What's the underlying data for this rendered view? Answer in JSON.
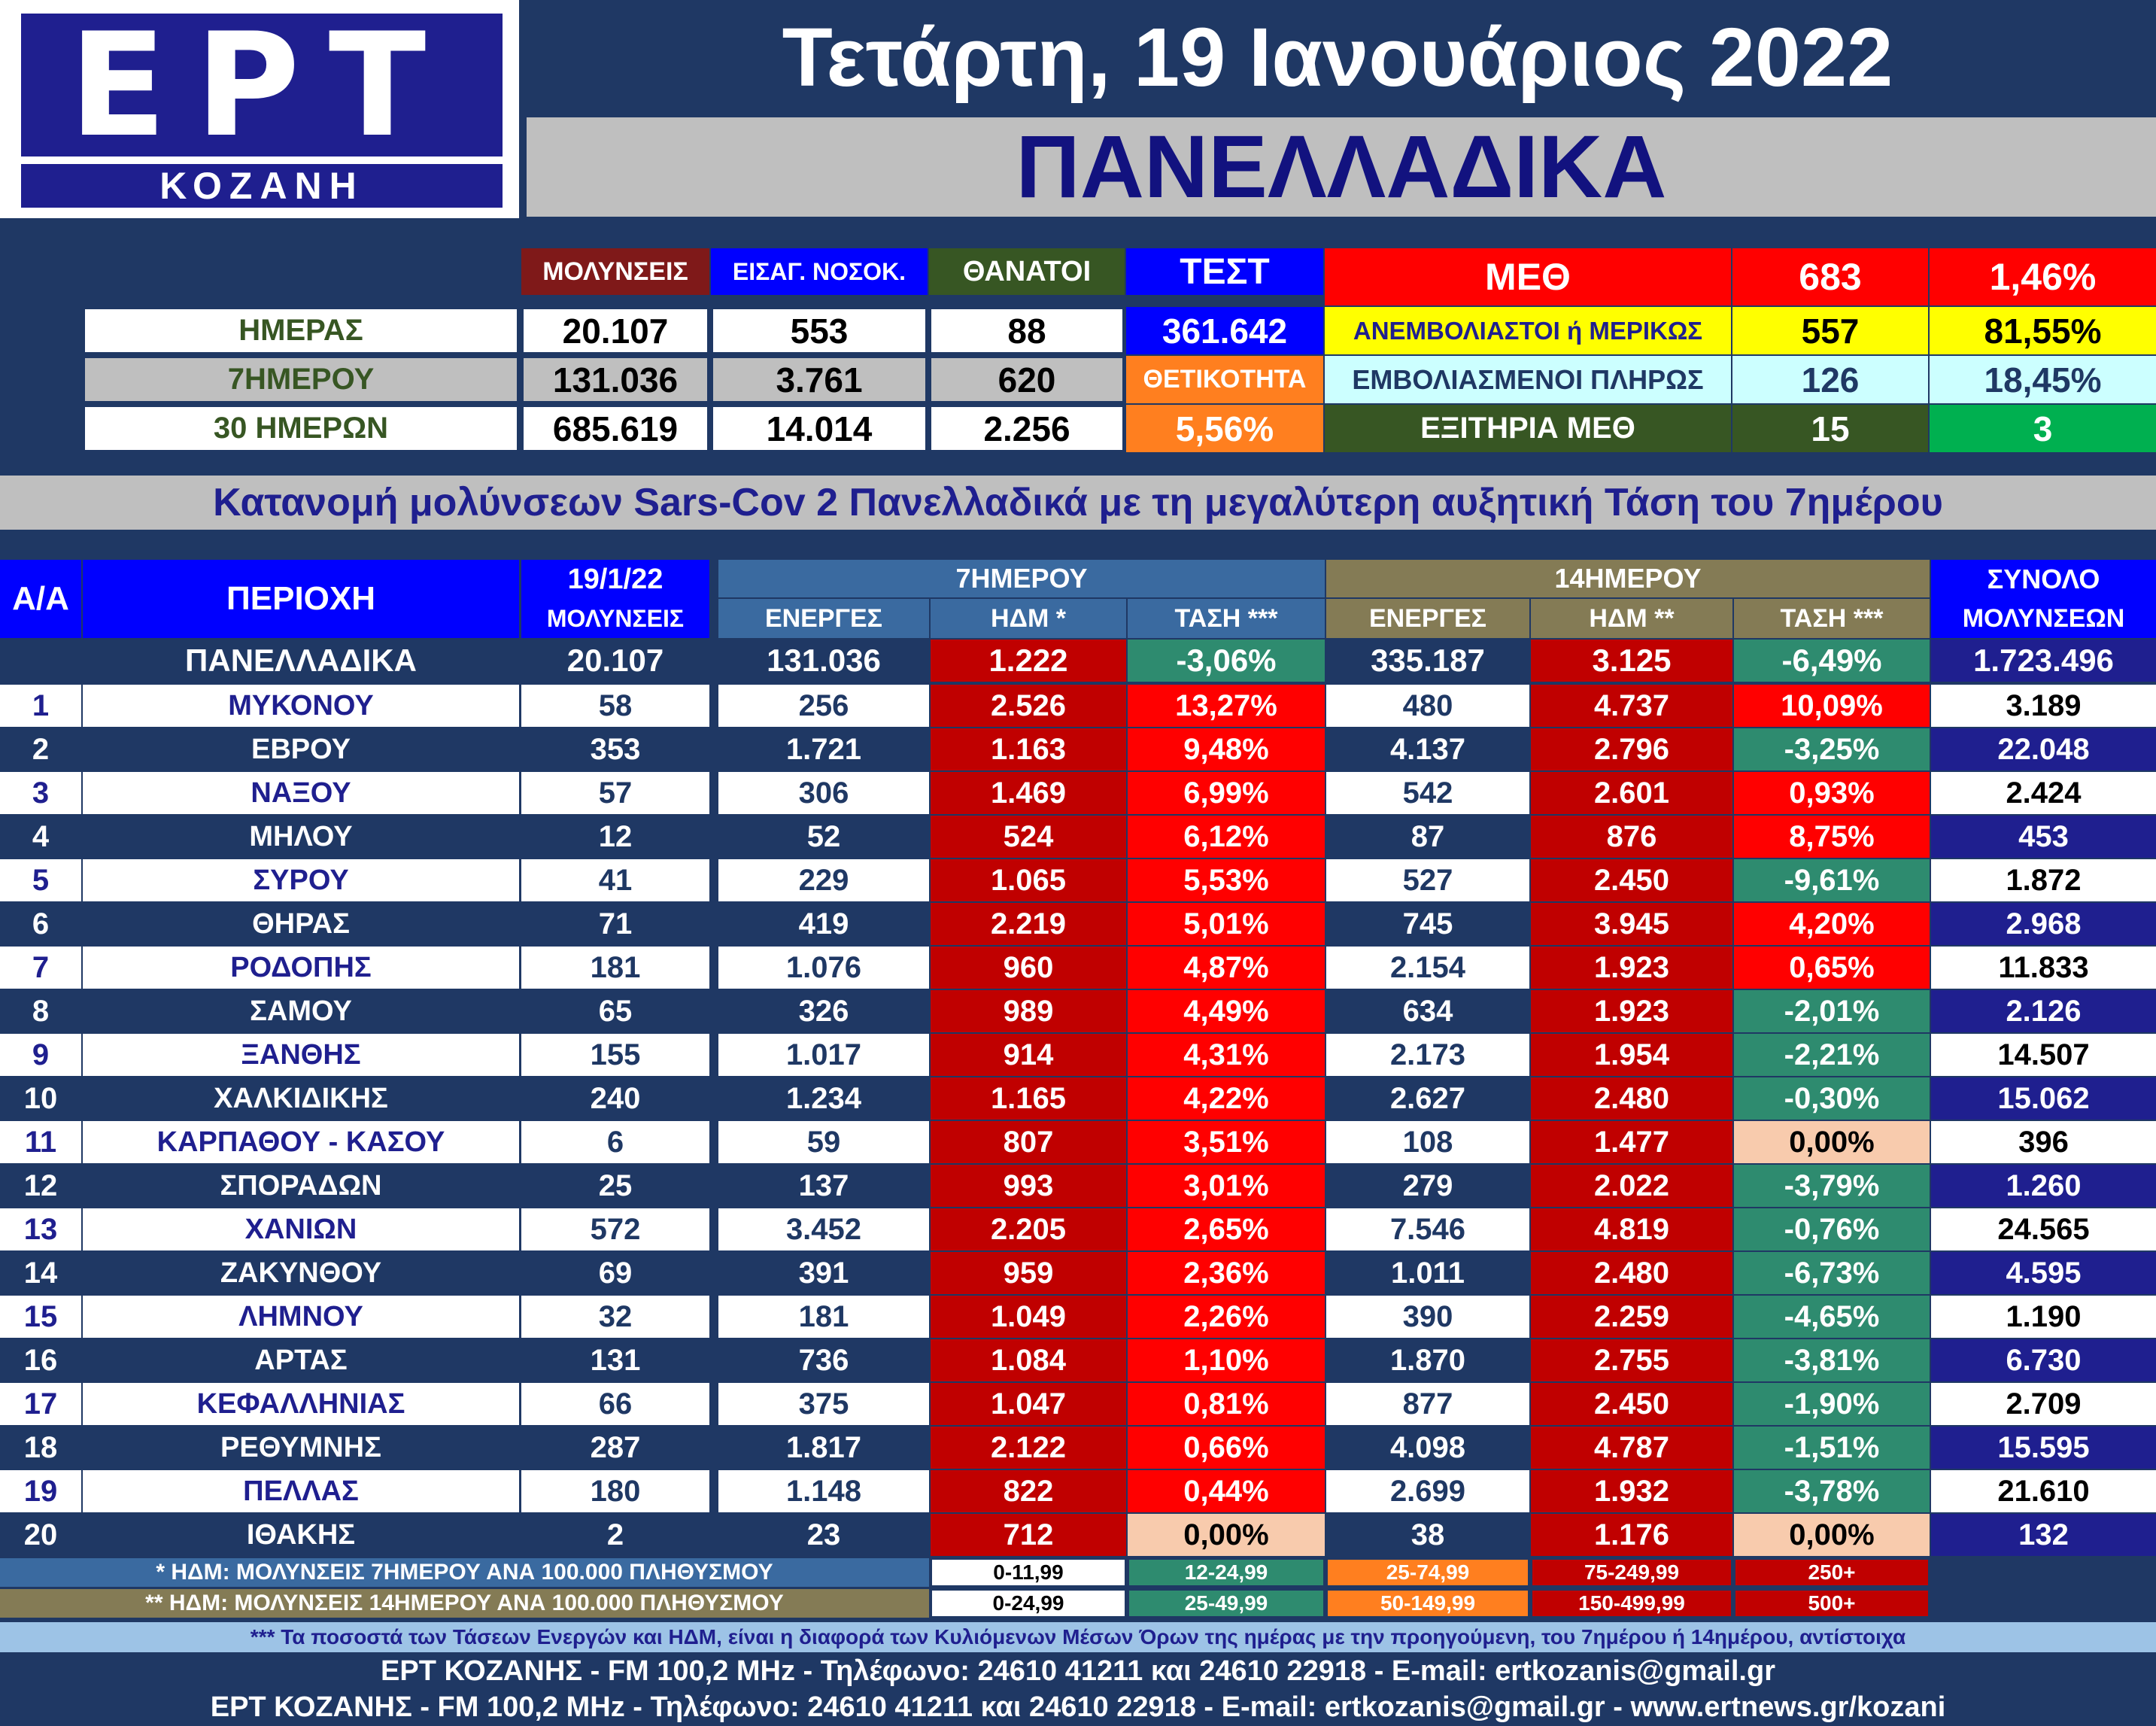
{
  "header": {
    "logo_main": "ΕΡΤ",
    "logo_sub": "ΚΟΖΑΝΗ",
    "date": "Τετάρτη, 19 Ιανουάριος 2022",
    "region": "ΠΑΝΕΛΛΑΔΙΚΑ"
  },
  "summary": {
    "col_infections": "ΜΟΛΥΝΣΕΙΣ",
    "col_hospital": "ΕΙΣΑΓ. ΝΟΣΟΚ.",
    "col_deaths": "ΘΑΝΑΤΟΙ",
    "col_tests": "ΤΕΣΤ",
    "rows": [
      {
        "label": "ΗΜΕΡΑΣ",
        "infections": "20.107",
        "hospital": "553",
        "deaths": "88"
      },
      {
        "label": "7ΗΜΕΡΟΥ",
        "infections": "131.036",
        "hospital": "3.761",
        "deaths": "620"
      },
      {
        "label": "30 ΗΜΕΡΩΝ",
        "infections": "685.619",
        "hospital": "14.014",
        "deaths": "2.256"
      }
    ],
    "tests_value": "361.642",
    "positivity_label": "ΘΕΤΙΚΟΤΗΤΑ",
    "positivity_value": "5,56%",
    "icu": {
      "label": "ΜΕΘ",
      "count": "683",
      "pct": "1,46%",
      "unvacc_label": "ΑΝΕΜΒΟΛΙΑΣΤΟΙ ή ΜΕΡΙΚΩΣ",
      "unvacc_count": "557",
      "unvacc_pct": "81,55%",
      "vacc_label": "ΕΜΒΟΛΙΑΣΜΕΝΟΙ ΠΛΗΡΩΣ",
      "vacc_count": "126",
      "vacc_pct": "18,45%",
      "discharge_label": "ΕΞΙΤΗΡΙΑ ΜΕΘ",
      "discharge_count": "15",
      "discharge_other": "3"
    }
  },
  "section_title": "Κατανομή μολύνσεων Sars-Cov 2 Πανελλαδικά με τη μεγαλύτερη αυξητική Τάση του 7ημέρου",
  "table": {
    "h_aa": "Α/Α",
    "h_area": "ΠΕΡΙΟΧΗ",
    "h_date": "19/1/22",
    "h_infections": "ΜΟΛΥΝΣΕΙΣ",
    "h_7day": "7ΗΜΕΡΟΥ",
    "h_14day": "14ΗΜΕΡΟΥ",
    "h_total": "ΣΥΝΟΛΟ",
    "h_total2": "ΜΟΛΥΝΣΕΩΝ",
    "h_active": "ΕΝΕΡΓΕΣ",
    "h_idm7": "ΗΔΜ *",
    "h_trend7": "ΤΑΣΗ ***",
    "h_active14": "ΕΝΕΡΓΕΣ",
    "h_idm14": "ΗΔΜ **",
    "h_trend14": "ΤΑΣΗ ***",
    "national": {
      "area": "ΠΑΝΕΛΛΑΔΙΚΑ",
      "day": "20.107",
      "act7": "131.036",
      "idm7": "1.222",
      "tr7": "-3,06%",
      "act14": "335.187",
      "idm14": "3.125",
      "tr14": "-6,49%",
      "total": "1.723.496"
    },
    "rows": [
      {
        "n": "1",
        "area": "ΜΥΚΟΝΟΥ",
        "day": "58",
        "act7": "256",
        "idm7": "2.526",
        "tr7": "13,27%",
        "act14": "480",
        "idm14": "4.737",
        "tr14": "10,09%",
        "total": "3.189"
      },
      {
        "n": "2",
        "area": "ΕΒΡΟΥ",
        "day": "353",
        "act7": "1.721",
        "idm7": "1.163",
        "tr7": "9,48%",
        "act14": "4.137",
        "idm14": "2.796",
        "tr14": "-3,25%",
        "total": "22.048"
      },
      {
        "n": "3",
        "area": "ΝΑΞΟΥ",
        "day": "57",
        "act7": "306",
        "idm7": "1.469",
        "tr7": "6,99%",
        "act14": "542",
        "idm14": "2.601",
        "tr14": "0,93%",
        "total": "2.424"
      },
      {
        "n": "4",
        "area": "ΜΗΛΟΥ",
        "day": "12",
        "act7": "52",
        "idm7": "524",
        "tr7": "6,12%",
        "act14": "87",
        "idm14": "876",
        "tr14": "8,75%",
        "total": "453"
      },
      {
        "n": "5",
        "area": "ΣΥΡΟΥ",
        "day": "41",
        "act7": "229",
        "idm7": "1.065",
        "tr7": "5,53%",
        "act14": "527",
        "idm14": "2.450",
        "tr14": "-9,61%",
        "total": "1.872"
      },
      {
        "n": "6",
        "area": "ΘΗΡΑΣ",
        "day": "71",
        "act7": "419",
        "idm7": "2.219",
        "tr7": "5,01%",
        "act14": "745",
        "idm14": "3.945",
        "tr14": "4,20%",
        "total": "2.968"
      },
      {
        "n": "7",
        "area": "ΡΟΔΟΠΗΣ",
        "day": "181",
        "act7": "1.076",
        "idm7": "960",
        "tr7": "4,87%",
        "act14": "2.154",
        "idm14": "1.923",
        "tr14": "0,65%",
        "total": "11.833"
      },
      {
        "n": "8",
        "area": "ΣΑΜΟΥ",
        "day": "65",
        "act7": "326",
        "idm7": "989",
        "tr7": "4,49%",
        "act14": "634",
        "idm14": "1.923",
        "tr14": "-2,01%",
        "total": "2.126"
      },
      {
        "n": "9",
        "area": "ΞΑΝΘΗΣ",
        "day": "155",
        "act7": "1.017",
        "idm7": "914",
        "tr7": "4,31%",
        "act14": "2.173",
        "idm14": "1.954",
        "tr14": "-2,21%",
        "total": "14.507"
      },
      {
        "n": "10",
        "area": "ΧΑΛΚΙΔΙΚΗΣ",
        "day": "240",
        "act7": "1.234",
        "idm7": "1.165",
        "tr7": "4,22%",
        "act14": "2.627",
        "idm14": "2.480",
        "tr14": "-0,30%",
        "total": "15.062"
      },
      {
        "n": "11",
        "area": "ΚΑΡΠΑΘΟΥ - ΚΑΣΟΥ",
        "day": "6",
        "act7": "59",
        "idm7": "807",
        "tr7": "3,51%",
        "act14": "108",
        "idm14": "1.477",
        "tr14": "0,00%",
        "total": "396"
      },
      {
        "n": "12",
        "area": "ΣΠΟΡΑΔΩΝ",
        "day": "25",
        "act7": "137",
        "idm7": "993",
        "tr7": "3,01%",
        "act14": "279",
        "idm14": "2.022",
        "tr14": "-3,79%",
        "total": "1.260"
      },
      {
        "n": "13",
        "area": "ΧΑΝΙΩΝ",
        "day": "572",
        "act7": "3.452",
        "idm7": "2.205",
        "tr7": "2,65%",
        "act14": "7.546",
        "idm14": "4.819",
        "tr14": "-0,76%",
        "total": "24.565"
      },
      {
        "n": "14",
        "area": "ΖΑΚΥΝΘΟΥ",
        "day": "69",
        "act7": "391",
        "idm7": "959",
        "tr7": "2,36%",
        "act14": "1.011",
        "idm14": "2.480",
        "tr14": "-6,73%",
        "total": "4.595"
      },
      {
        "n": "15",
        "area": "ΛΗΜΝΟΥ",
        "day": "32",
        "act7": "181",
        "idm7": "1.049",
        "tr7": "2,26%",
        "act14": "390",
        "idm14": "2.259",
        "tr14": "-4,65%",
        "total": "1.190"
      },
      {
        "n": "16",
        "area": "ΑΡΤΑΣ",
        "day": "131",
        "act7": "736",
        "idm7": "1.084",
        "tr7": "1,10%",
        "act14": "1.870",
        "idm14": "2.755",
        "tr14": "-3,81%",
        "total": "6.730"
      },
      {
        "n": "17",
        "area": "ΚΕΦΑΛΛΗΝΙΑΣ",
        "day": "66",
        "act7": "375",
        "idm7": "1.047",
        "tr7": "0,81%",
        "act14": "877",
        "idm14": "2.450",
        "tr14": "-1,90%",
        "total": "2.709"
      },
      {
        "n": "18",
        "area": "ΡΕΘΥΜΝΗΣ",
        "day": "287",
        "act7": "1.817",
        "idm7": "2.122",
        "tr7": "0,66%",
        "act14": "4.098",
        "idm14": "4.787",
        "tr14": "-1,51%",
        "total": "15.595"
      },
      {
        "n": "19",
        "area": "ΠΕΛΛΑΣ",
        "day": "180",
        "act7": "1.148",
        "idm7": "822",
        "tr7": "0,44%",
        "act14": "2.699",
        "idm14": "1.932",
        "tr14": "-3,78%",
        "total": "21.610"
      },
      {
        "n": "20",
        "area": "ΙΘΑΚΗΣ",
        "day": "2",
        "act7": "23",
        "idm7": "712",
        "tr7": "0,00%",
        "act14": "38",
        "idm14": "1.176",
        "tr14": "0,00%",
        "total": "132"
      }
    ]
  },
  "legend": {
    "note7": "* ΗΔΜ: ΜΟΛΥΝΣΕΙΣ 7ΗΜΕΡΟΥ ΑΝΑ 100.000 ΠΛΗΘΥΣΜΟΥ",
    "note14": "** ΗΔΜ: ΜΟΛΥΝΣΕΙΣ 14ΗΜΕΡΟΥ ΑΝΑ 100.000 ΠΛΗΘΥΣΜΟΥ",
    "ranges7": [
      "0-11,99",
      "12-24,99",
      "25-74,99",
      "75-249,99",
      "250+"
    ],
    "ranges14": [
      "0-24,99",
      "25-49,99",
      "50-149,99",
      "150-499,99",
      "500+"
    ]
  },
  "footer": {
    "note": "*** Τα ποσοστά των Τάσεων Ενεργών και ΗΔΜ, είναι η διαφορά των Κυλιόμενων Μέσων Όρων της ημέρας με την προηγούμενη, του 7ημέρου ή 14ημέρου, αντίστοιχα",
    "line1": "ΕΡΤ ΚΟΖΑΝΗΣ - FM 100,2 MHz - Τηλέφωνο:  24610 41211 και 24610 22918 - E-mail: ertkozanis@gmail.gr",
    "line2": "ΕΡΤ ΚΟΖΑΝΗΣ - FM 100,2 MHz - Τηλέφωνο:  24610 41211 και 24610 22918 - E-mail: ertkozanis@gmail.gr - www.ertnews.gr/kozani"
  },
  "colors": {
    "navy": "#1f3864",
    "white": "#ffffff",
    "red_dark": "#c00000",
    "red": "#ff0000",
    "green": "#2e8b6f",
    "peach": "#f8cbad",
    "gray": "#bfbfbf",
    "olive": "#847b55",
    "steel": "#3a6aa0",
    "orange": "#ff7f1f",
    "yellow": "#ffff00",
    "lightcyan": "#ccffff",
    "darkgreen": "#375623",
    "green_bright": "#00b050",
    "maroon": "#7f1919",
    "blue": "#0000ff"
  }
}
